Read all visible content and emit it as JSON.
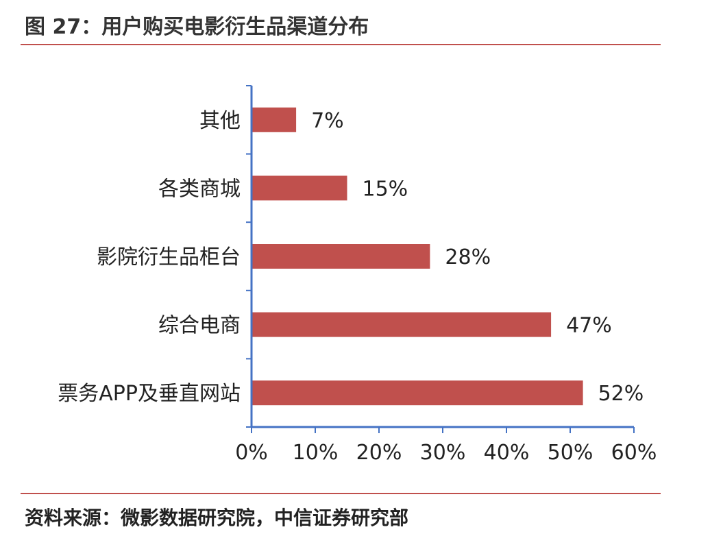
{
  "header": {
    "title": "图 27：用户购买电影衍生品渠道分布"
  },
  "footer": {
    "source": "资料来源：微影数据研究院，中信证券研究部"
  },
  "colors": {
    "bar": "#c0504d",
    "axis": "#4472c4",
    "rule": "#c0504d"
  },
  "chart_data": {
    "type": "bar",
    "orientation": "horizontal",
    "categories": [
      "其他",
      "各类商城",
      "影院衍生品柜台",
      "综合电商",
      "票务APP及垂直网站"
    ],
    "values": [
      7,
      15,
      28,
      47,
      52
    ],
    "value_labels": [
      "7%",
      "15%",
      "28%",
      "47%",
      "52%"
    ],
    "xlim": [
      0,
      60
    ],
    "x_ticks": [
      0,
      10,
      20,
      30,
      40,
      50,
      60
    ],
    "x_tick_labels": [
      "0%",
      "10%",
      "20%",
      "30%",
      "40%",
      "50%",
      "60%"
    ],
    "grid": false,
    "legend": "none"
  }
}
